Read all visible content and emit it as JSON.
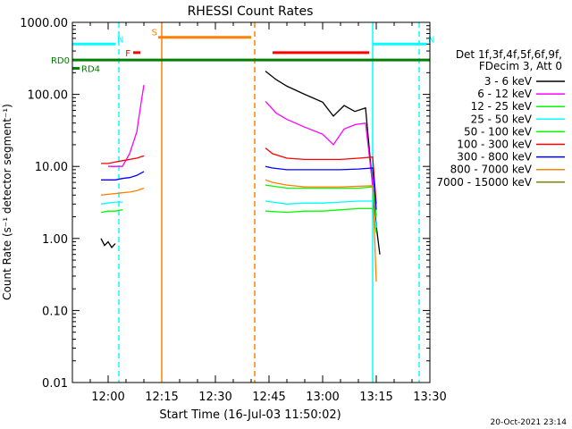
{
  "chart_data": {
    "type": "line",
    "title": "RHESSI Count Rates",
    "xlabel": "Start Time (16-Jul-03 11:50:02)",
    "ylabel": "Count Rate (s⁻¹ detector segment⁻¹)",
    "y_scale": "log",
    "ylim": [
      0.01,
      1000
    ],
    "xlim": [
      "11:50",
      "13:30"
    ],
    "y_ticks": [
      "0.01",
      "0.10",
      "1.00",
      "10.00",
      "100.00",
      "1000.00"
    ],
    "x_ticks": [
      "12:00",
      "12:15",
      "12:30",
      "12:45",
      "13:00",
      "13:15",
      "13:30"
    ],
    "timestamp": "20-Oct-2021 23:14",
    "legend": {
      "header": [
        "Det 1f,3f,4f,5f,6f,9f,",
        "FDecim 3, Att 0"
      ],
      "placement": "right"
    },
    "series": [
      {
        "name": "3 - 6 keV",
        "color": "#000000",
        "segments": [
          {
            "x": [
              "11:58",
              "11:59",
              "12:00",
              "12:01",
              "12:02"
            ],
            "y": [
              1.0,
              0.8,
              0.9,
              0.75,
              0.85
            ]
          },
          {
            "x": [
              "12:44",
              "12:47",
              "12:50",
              "12:55",
              "13:00",
              "13:03",
              "13:06",
              "13:09",
              "13:12",
              "13:15",
              "13:16"
            ],
            "y": [
              210,
              160,
              130,
              100,
              78,
              50,
              70,
              58,
              65,
              1.5,
              0.6
            ]
          }
        ]
      },
      {
        "name": "6 - 12 keV",
        "color": "#ff00ff",
        "segments": [
          {
            "x": [
              "12:00",
              "12:04",
              "12:06",
              "12:08",
              "12:09",
              "12:10"
            ],
            "y": [
              10,
              10,
              15,
              30,
              65,
              135
            ]
          },
          {
            "x": [
              "12:44",
              "12:47",
              "12:50",
              "12:55",
              "13:00",
              "13:03",
              "13:06",
              "13:09",
              "13:12",
              "13:15"
            ],
            "y": [
              80,
              55,
              45,
              35,
              28,
              20,
              33,
              38,
              40,
              2
            ]
          }
        ]
      },
      {
        "name": "12 - 25 keV",
        "color": "#00ff00",
        "segments": [
          {
            "x": [
              "11:58",
              "12:00",
              "12:02",
              "12:04"
            ],
            "y": [
              2.3,
              2.4,
              2.4,
              2.5
            ]
          },
          {
            "x": [
              "12:44",
              "12:50",
              "12:55",
              "13:00",
              "13:05",
              "13:10",
              "13:14",
              "13:15"
            ],
            "y": [
              2.4,
              2.3,
              2.4,
              2.4,
              2.5,
              2.6,
              2.6,
              1.2
            ]
          }
        ]
      },
      {
        "name": "25 - 50 keV",
        "color": "#00ffff",
        "segments": [
          {
            "x": [
              "11:58",
              "12:00",
              "12:02",
              "12:04"
            ],
            "y": [
              3.0,
              3.1,
              3.2,
              3.2
            ]
          },
          {
            "x": [
              "12:44",
              "12:50",
              "12:55",
              "13:00",
              "13:05",
              "13:10",
              "13:14",
              "13:15"
            ],
            "y": [
              3.3,
              3.0,
              3.1,
              3.1,
              3.2,
              3.3,
              3.3,
              1.4
            ]
          }
        ]
      },
      {
        "name": "50 - 100 keV",
        "color": "#00ff00",
        "segments": [
          {
            "x": [
              "12:44",
              "12:50",
              "12:55",
              "13:00",
              "13:05",
              "13:10",
              "13:14",
              "13:15"
            ],
            "y": [
              5.5,
              5.0,
              5.0,
              5.0,
              5.0,
              5.0,
              5.2,
              2.0
            ]
          }
        ]
      },
      {
        "name": "100 - 300 keV",
        "color": "#ff0000",
        "segments": [
          {
            "x": [
              "11:58",
              "12:00",
              "12:02",
              "12:04",
              "12:06",
              "12:08",
              "12:10"
            ],
            "y": [
              11,
              11,
              11.5,
              12,
              12.5,
              13,
              14
            ]
          },
          {
            "x": [
              "12:44",
              "12:46",
              "12:50",
              "12:55",
              "13:00",
              "13:05",
              "13:10",
              "13:14",
              "13:15"
            ],
            "y": [
              18,
              15,
              13,
              12.5,
              12.5,
              12.5,
              13,
              13.5,
              3
            ]
          }
        ]
      },
      {
        "name": "300 - 800 keV",
        "color": "#0000ff",
        "segments": [
          {
            "x": [
              "11:58",
              "12:00",
              "12:02",
              "12:04",
              "12:06",
              "12:08",
              "12:10"
            ],
            "y": [
              6.5,
              6.5,
              6.5,
              6.8,
              7.0,
              7.5,
              8.5
            ]
          },
          {
            "x": [
              "12:44",
              "12:46",
              "12:50",
              "12:55",
              "13:00",
              "13:05",
              "13:10",
              "13:14",
              "13:15"
            ],
            "y": [
              10,
              9.5,
              9.0,
              9.0,
              9.0,
              9.0,
              9.2,
              9.5,
              2.5
            ]
          }
        ]
      },
      {
        "name": "800 - 7000 keV",
        "color": "#ff8000",
        "segments": [
          {
            "x": [
              "11:58",
              "12:00",
              "12:02",
              "12:04",
              "12:06",
              "12:08",
              "12:10"
            ],
            "y": [
              4.0,
              4.1,
              4.2,
              4.3,
              4.4,
              4.6,
              5.0
            ]
          },
          {
            "x": [
              "12:44",
              "12:46",
              "12:50",
              "12:55",
              "13:00",
              "13:05",
              "13:10",
              "13:14",
              "13:15"
            ],
            "y": [
              6.5,
              6.0,
              5.5,
              5.2,
              5.2,
              5.2,
              5.3,
              5.4,
              0.25
            ]
          }
        ]
      },
      {
        "name": "7000 - 15000 keV",
        "color": "#808000",
        "segments": []
      }
    ],
    "annotations": {
      "state_bars": [
        {
          "label": "N",
          "color": "#00ffff",
          "x0": "11:50",
          "x1": "12:02",
          "y": 500
        },
        {
          "label": "N",
          "color": "#00ffff",
          "x0": "13:14",
          "x1": "13:29",
          "y": 500
        },
        {
          "label": "S",
          "color": "#ff8000",
          "x0": "12:14",
          "x1": "12:40",
          "y": 620
        },
        {
          "label": "F",
          "color": "#ff0000",
          "x0": "12:07",
          "x1": "12:09",
          "y": 380
        },
        {
          "label": "",
          "color": "#ff0000",
          "x0": "12:46",
          "x1": "13:13",
          "y": 380
        },
        {
          "label": "RD0",
          "color": "#008000",
          "x0": "11:50",
          "x1": "13:30",
          "y": 300
        },
        {
          "label": "RD4",
          "color": "#008000",
          "x0": "11:50",
          "x1": "11:52",
          "y": 230
        }
      ],
      "vlines": [
        {
          "x": "12:03",
          "color": "#00ffff",
          "style": "dashed"
        },
        {
          "x": "13:14",
          "color": "#00ffff",
          "style": "solid"
        },
        {
          "x": "13:27",
          "color": "#00ffff",
          "style": "dashed"
        },
        {
          "x": "12:15",
          "color": "#ff8000",
          "style": "solid"
        },
        {
          "x": "12:41",
          "color": "#ff8000",
          "style": "dashed"
        }
      ]
    }
  }
}
